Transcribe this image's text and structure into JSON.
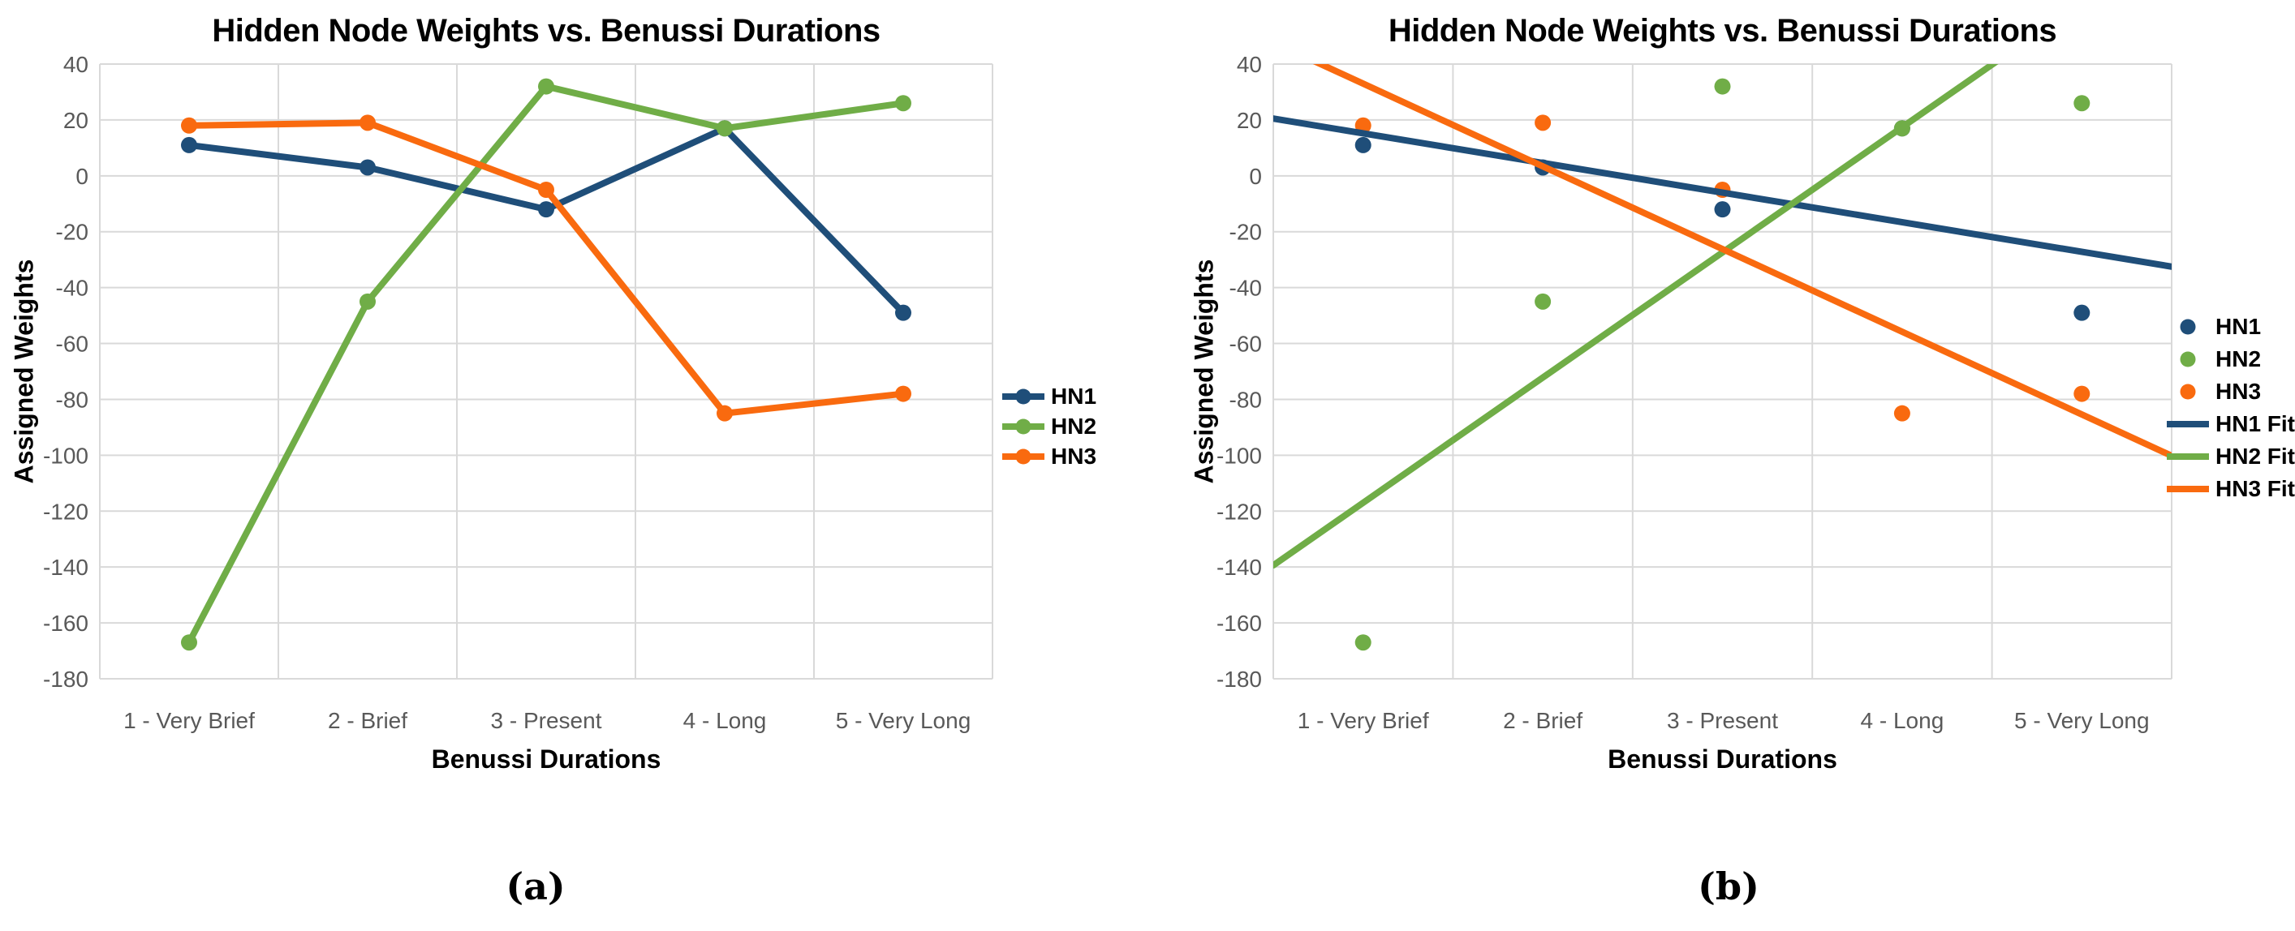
{
  "page": {
    "background": "#ffffff"
  },
  "captions": {
    "a": "(a)",
    "b": "(b)"
  },
  "colors": {
    "hn1": "#1F4E79",
    "hn2": "#70AD47",
    "hn3": "#F96A0F",
    "gridline": "#D9D9D9",
    "tick_text": "#595959",
    "title_text": "#000000"
  },
  "chart_data": [
    {
      "id": "a",
      "type": "line",
      "title": "Hidden Node Weights vs. Benussi Durations",
      "xlabel": "Benussi Durations",
      "ylabel": "Assigned Weights",
      "categories": [
        "1 - Very Brief",
        "2 - Brief",
        "3 - Present",
        "4 - Long",
        "5 - Very Long"
      ],
      "series": [
        {
          "name": "HN1",
          "color": "#1F4E79",
          "values": [
            11,
            3,
            -12,
            17,
            -49
          ]
        },
        {
          "name": "HN2",
          "color": "#70AD47",
          "values": [
            -167,
            -45,
            32,
            17,
            26
          ]
        },
        {
          "name": "HN3",
          "color": "#F96A0F",
          "values": [
            18,
            19,
            -5,
            -85,
            -78
          ]
        }
      ],
      "ylim": [
        -180,
        40
      ],
      "ytick_step": 20,
      "y_ticks": [
        40,
        20,
        0,
        -20,
        -40,
        -60,
        -80,
        -100,
        -120,
        -140,
        -160,
        -180
      ],
      "grid": true,
      "legend_position": "right",
      "marker": "circle"
    },
    {
      "id": "b",
      "type": "scatter",
      "title": "Hidden Node Weights vs. Benussi Durations",
      "xlabel": "Benussi Durations",
      "ylabel": "Assigned Weights",
      "categories": [
        "1 - Very Brief",
        "2 - Brief",
        "3 - Present",
        "4 - Long",
        "5 - Very Long"
      ],
      "x": [
        1,
        2,
        3,
        4,
        5
      ],
      "series": [
        {
          "name": "HN1",
          "color": "#1F4E79",
          "values": [
            11,
            3,
            -12,
            17,
            -49
          ]
        },
        {
          "name": "HN2",
          "color": "#70AD47",
          "values": [
            -167,
            -45,
            32,
            17,
            26
          ]
        },
        {
          "name": "HN3",
          "color": "#F96A0F",
          "values": [
            18,
            19,
            -5,
            -85,
            -78
          ]
        }
      ],
      "fit_lines": [
        {
          "name": "HN1 Fit",
          "color": "#1F4E79",
          "slope": -10.6,
          "intercept": 25.8
        },
        {
          "name": "HN2 Fit",
          "color": "#70AD47",
          "slope": 44.8,
          "intercept": -161.8
        },
        {
          "name": "HN3 Fit",
          "color": "#F96A0F",
          "slope": -29.6,
          "intercept": 62.6
        }
      ],
      "xlim": [
        0.5,
        5.5
      ],
      "ylim": [
        -180,
        40
      ],
      "ytick_step": 20,
      "y_ticks": [
        40,
        20,
        0,
        -20,
        -40,
        -60,
        -80,
        -100,
        -120,
        -140,
        -160,
        -180
      ],
      "grid": true,
      "legend_position": "right"
    }
  ]
}
